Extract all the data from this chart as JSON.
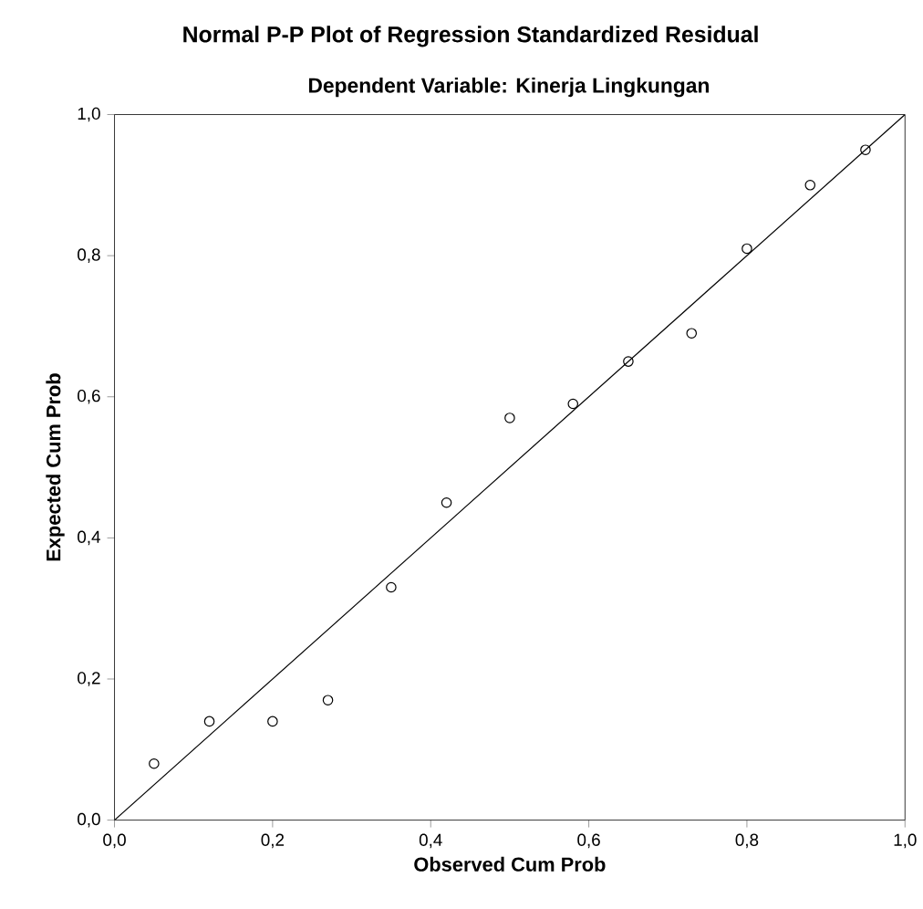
{
  "chart_data": {
    "type": "scatter",
    "title": "Normal P-P Plot of Regression Standardized Residual",
    "subtitle": "Dependent Variable: Kinerja Lingkungan",
    "xlabel": "Observed Cum Prob",
    "ylabel": "Expected Cum Prob",
    "xlim": [
      0,
      1
    ],
    "ylim": [
      0,
      1
    ],
    "xticks": [
      {
        "value": 0,
        "label": "0,0"
      },
      {
        "value": 0.2,
        "label": "0,2"
      },
      {
        "value": 0.4,
        "label": "0,4"
      },
      {
        "value": 0.6,
        "label": "0,6"
      },
      {
        "value": 0.8,
        "label": "0,8"
      },
      {
        "value": 1,
        "label": "1,0"
      }
    ],
    "yticks": [
      {
        "value": 0,
        "label": "0,0"
      },
      {
        "value": 0.2,
        "label": "0,2"
      },
      {
        "value": 0.4,
        "label": "0,4"
      },
      {
        "value": 0.6,
        "label": "0,6"
      },
      {
        "value": 0.8,
        "label": "0,8"
      },
      {
        "value": 1,
        "label": "1,0"
      }
    ],
    "grid": false,
    "marker": "circle",
    "series": [
      {
        "color": "#000000",
        "x": [
          0.05,
          0.12,
          0.2,
          0.27,
          0.35,
          0.42,
          0.5,
          0.58,
          0.65,
          0.73,
          0.8,
          0.88,
          0.95
        ],
        "values": [
          0.08,
          0.14,
          0.14,
          0.17,
          0.33,
          0.45,
          0.57,
          0.59,
          0.65,
          0.69,
          0.81,
          0.9,
          0.95
        ]
      },
      {
        "type": "line",
        "color": "#000000",
        "marker": "none",
        "line_style": "solid",
        "x": [
          0,
          1
        ],
        "values": [
          0,
          1
        ]
      }
    ]
  }
}
